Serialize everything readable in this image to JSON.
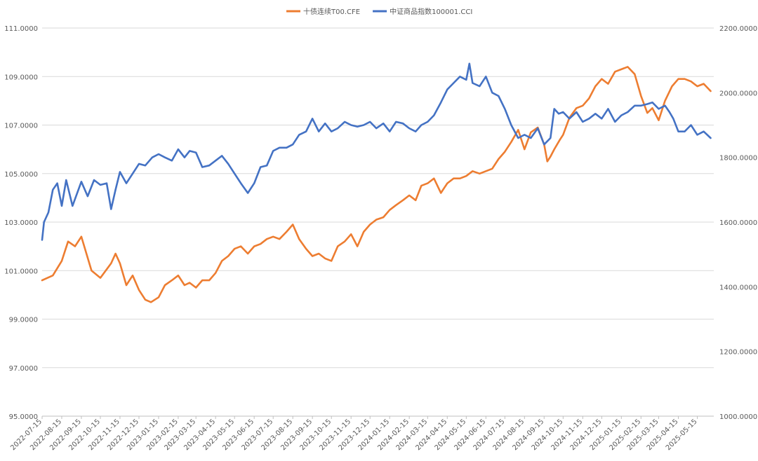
{
  "chart_data": {
    "type": "line",
    "title": "",
    "xlabel": "",
    "ylabel": "",
    "legend_position": "top",
    "grid": true,
    "x_ticks": [
      "2022-07-15",
      "2022-08-15",
      "2022-09-15",
      "2022-10-15",
      "2022-11-15",
      "2022-12-15",
      "2023-01-15",
      "2023-02-15",
      "2023-03-15",
      "2023-04-15",
      "2023-05-15",
      "2023-06-15",
      "2023-07-15",
      "2023-08-15",
      "2023-09-15",
      "2023-10-15",
      "2023-11-15",
      "2023-12-15",
      "2024-01-15",
      "2024-02-15",
      "2024-03-15",
      "2024-04-15",
      "2024-05-15",
      "2024-06-15",
      "2024-07-15",
      "2024-08-15",
      "2024-09-15",
      "2024-10-15",
      "2024-11-15",
      "2024-12-15",
      "2025-01-15",
      "2025-02-15",
      "2025-03-15",
      "2025-04-15",
      "2025-05-15"
    ],
    "y_left": {
      "min": 95,
      "max": 111,
      "ticks": [
        "111.0000",
        "109.0000",
        "107.0000",
        "105.0000",
        "103.0000",
        "101.0000",
        "99.0000",
        "97.0000",
        "95.0000"
      ]
    },
    "y_right": {
      "min": 1000,
      "max": 2200,
      "ticks": [
        "2200.0000",
        "2000.0000",
        "1800.0000",
        "1600.0000",
        "1400.0000",
        "1200.0000",
        "1000.0000"
      ]
    },
    "series": [
      {
        "name": "十债连续T00.CFE",
        "axis": "left",
        "color": "#ED7D31",
        "x": [
          "2022-07-15",
          "2022-08-01",
          "2022-08-15",
          "2022-08-25",
          "2022-09-05",
          "2022-09-15",
          "2022-10-01",
          "2022-10-15",
          "2022-11-01",
          "2022-11-08",
          "2022-11-15",
          "2022-11-25",
          "2022-12-05",
          "2022-12-15",
          "2022-12-25",
          "2023-01-03",
          "2023-01-15",
          "2023-01-25",
          "2023-02-05",
          "2023-02-15",
          "2023-02-25",
          "2023-03-05",
          "2023-03-15",
          "2023-03-25",
          "2023-04-05",
          "2023-04-15",
          "2023-04-25",
          "2023-05-05",
          "2023-05-15",
          "2023-05-25",
          "2023-06-05",
          "2023-06-15",
          "2023-06-25",
          "2023-07-05",
          "2023-07-15",
          "2023-07-25",
          "2023-08-05",
          "2023-08-15",
          "2023-08-25",
          "2023-09-05",
          "2023-09-15",
          "2023-09-25",
          "2023-10-05",
          "2023-10-15",
          "2023-10-25",
          "2023-11-05",
          "2023-11-15",
          "2023-11-25",
          "2023-12-05",
          "2023-12-15",
          "2023-12-25",
          "2024-01-05",
          "2024-01-15",
          "2024-01-25",
          "2024-02-05",
          "2024-02-15",
          "2024-02-25",
          "2024-03-05",
          "2024-03-15",
          "2024-03-25",
          "2024-04-05",
          "2024-04-15",
          "2024-04-25",
          "2024-05-05",
          "2024-05-15",
          "2024-05-25",
          "2024-06-05",
          "2024-06-15",
          "2024-06-25",
          "2024-07-05",
          "2024-07-15",
          "2024-07-25",
          "2024-08-05",
          "2024-08-15",
          "2024-08-25",
          "2024-09-05",
          "2024-09-15",
          "2024-09-20",
          "2024-09-25",
          "2024-10-01",
          "2024-10-10",
          "2024-10-15",
          "2024-10-25",
          "2024-11-05",
          "2024-11-15",
          "2024-11-25",
          "2024-12-05",
          "2024-12-15",
          "2024-12-25",
          "2025-01-05",
          "2025-01-15",
          "2025-01-25",
          "2025-02-05",
          "2025-02-15",
          "2025-02-25",
          "2025-03-05",
          "2025-03-15",
          "2025-03-25",
          "2025-04-05",
          "2025-04-15",
          "2025-04-25",
          "2025-05-05",
          "2025-05-15",
          "2025-05-25",
          "2025-06-05"
        ],
        "values": [
          100.6,
          100.8,
          101.4,
          102.2,
          102.0,
          102.4,
          101.0,
          100.7,
          101.3,
          101.7,
          101.3,
          100.4,
          100.8,
          100.2,
          99.8,
          99.7,
          99.9,
          100.4,
          100.6,
          100.8,
          100.4,
          100.5,
          100.3,
          100.6,
          100.6,
          100.9,
          101.4,
          101.6,
          101.9,
          102.0,
          101.7,
          102.0,
          102.1,
          102.3,
          102.4,
          102.3,
          102.6,
          102.9,
          102.3,
          101.9,
          101.6,
          101.7,
          101.5,
          101.4,
          102.0,
          102.2,
          102.5,
          102.0,
          102.6,
          102.9,
          103.1,
          103.2,
          103.5,
          103.7,
          103.9,
          104.1,
          103.9,
          104.5,
          104.6,
          104.8,
          104.2,
          104.6,
          104.8,
          104.8,
          104.9,
          105.1,
          105.0,
          105.1,
          105.2,
          105.6,
          105.9,
          106.3,
          106.8,
          106.0,
          106.7,
          106.9,
          106.2,
          105.5,
          105.7,
          106.0,
          106.4,
          106.6,
          107.3,
          107.7,
          107.8,
          108.1,
          108.6,
          108.9,
          108.7,
          109.2,
          109.3,
          109.4,
          109.1,
          108.2,
          107.5,
          107.7,
          107.2,
          108.0,
          108.6,
          108.9,
          108.9,
          108.8,
          108.6,
          108.7,
          108.4
        ]
      },
      {
        "name": "中证商品指数100001.CCI",
        "axis": "right",
        "color": "#4472C4",
        "x": [
          "2022-07-15",
          "2022-07-18",
          "2022-07-25",
          "2022-08-01",
          "2022-08-08",
          "2022-08-15",
          "2022-08-22",
          "2022-09-01",
          "2022-09-15",
          "2022-09-25",
          "2022-10-05",
          "2022-10-15",
          "2022-10-25",
          "2022-11-01",
          "2022-11-08",
          "2022-11-15",
          "2022-11-25",
          "2022-12-05",
          "2022-12-15",
          "2022-12-25",
          "2023-01-05",
          "2023-01-15",
          "2023-01-25",
          "2023-02-05",
          "2023-02-15",
          "2023-02-25",
          "2023-03-05",
          "2023-03-15",
          "2023-03-25",
          "2023-04-05",
          "2023-04-15",
          "2023-04-25",
          "2023-05-05",
          "2023-05-15",
          "2023-05-25",
          "2023-06-05",
          "2023-06-15",
          "2023-06-25",
          "2023-07-05",
          "2023-07-15",
          "2023-07-25",
          "2023-08-05",
          "2023-08-15",
          "2023-08-25",
          "2023-09-05",
          "2023-09-15",
          "2023-09-25",
          "2023-10-05",
          "2023-10-15",
          "2023-10-25",
          "2023-11-05",
          "2023-11-15",
          "2023-11-25",
          "2023-12-05",
          "2023-12-15",
          "2023-12-25",
          "2024-01-05",
          "2024-01-15",
          "2024-01-25",
          "2024-02-05",
          "2024-02-15",
          "2024-02-25",
          "2024-03-05",
          "2024-03-15",
          "2024-03-25",
          "2024-04-05",
          "2024-04-15",
          "2024-04-25",
          "2024-05-05",
          "2024-05-15",
          "2024-05-20",
          "2024-05-25",
          "2024-06-05",
          "2024-06-15",
          "2024-06-25",
          "2024-07-05",
          "2024-07-15",
          "2024-07-25",
          "2024-08-05",
          "2024-08-15",
          "2024-08-25",
          "2024-09-05",
          "2024-09-15",
          "2024-09-25",
          "2024-10-01",
          "2024-10-08",
          "2024-10-15",
          "2024-10-25",
          "2024-11-05",
          "2024-11-15",
          "2024-11-25",
          "2024-12-05",
          "2024-12-15",
          "2024-12-25",
          "2025-01-05",
          "2025-01-15",
          "2025-01-25",
          "2025-02-05",
          "2025-02-15",
          "2025-02-25",
          "2025-03-05",
          "2025-03-15",
          "2025-03-25",
          "2025-04-01",
          "2025-04-07",
          "2025-04-15",
          "2025-04-25",
          "2025-05-05",
          "2025-05-15",
          "2025-05-25",
          "2025-06-05"
        ],
        "values": [
          1545,
          1600,
          1630,
          1700,
          1720,
          1650,
          1730,
          1650,
          1725,
          1680,
          1730,
          1715,
          1720,
          1640,
          1700,
          1755,
          1720,
          1750,
          1780,
          1775,
          1800,
          1810,
          1800,
          1790,
          1825,
          1800,
          1820,
          1815,
          1770,
          1775,
          1790,
          1805,
          1780,
          1750,
          1720,
          1690,
          1720,
          1770,
          1775,
          1820,
          1830,
          1830,
          1840,
          1870,
          1880,
          1920,
          1880,
          1905,
          1880,
          1890,
          1910,
          1900,
          1895,
          1900,
          1910,
          1890,
          1905,
          1880,
          1910,
          1905,
          1890,
          1880,
          1900,
          1910,
          1930,
          1970,
          2010,
          2030,
          2050,
          2040,
          2090,
          2030,
          2020,
          2050,
          2000,
          1990,
          1950,
          1900,
          1860,
          1870,
          1860,
          1890,
          1840,
          1860,
          1950,
          1935,
          1940,
          1920,
          1940,
          1910,
          1920,
          1935,
          1920,
          1950,
          1910,
          1930,
          1940,
          1960,
          1960,
          1965,
          1970,
          1950,
          1960,
          1940,
          1920,
          1880,
          1880,
          1900,
          1870,
          1880,
          1860
        ]
      }
    ]
  }
}
